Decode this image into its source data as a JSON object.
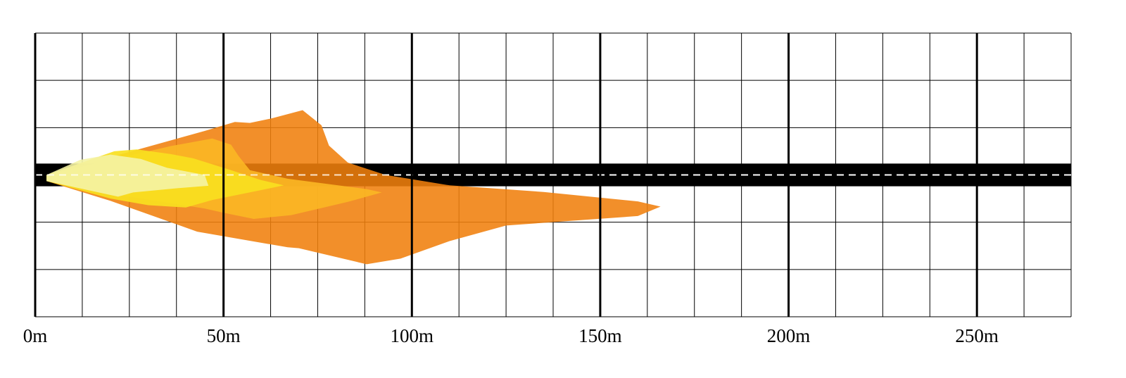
{
  "chart_data": {
    "type": "area",
    "title": "",
    "xlabel": "",
    "ylabel": "",
    "xlim": [
      0,
      275
    ],
    "ylim": [
      -30,
      30
    ],
    "x_tick_labels": [
      "0m",
      "50m",
      "100m",
      "150m",
      "200m",
      "250m"
    ],
    "x_tick_values": [
      0,
      50,
      100,
      150,
      200,
      250
    ],
    "major_gridline_step": 50,
    "minor_gridline_step": 12.5,
    "horizontal_gridline_step": 10,
    "grid": true,
    "legend": "none",
    "road": {
      "center_y": 0,
      "half_width": 2.4,
      "color": "#000000",
      "centerline_color": "#ffffff",
      "centerline_style": "dashed"
    },
    "series": [
      {
        "color": "#f07f0c",
        "opacity": 0.88,
        "outline": [
          [
            3,
            0
          ],
          [
            45,
            9.3
          ],
          [
            53,
            11.2
          ],
          [
            57,
            11.0
          ],
          [
            63,
            12.0
          ],
          [
            71,
            13.7
          ],
          [
            76,
            10.5
          ],
          [
            78,
            6.2
          ],
          [
            83,
            2.6
          ],
          [
            93,
            0
          ],
          [
            110,
            -2.2
          ],
          [
            135,
            -3.6
          ],
          [
            160,
            -5.6
          ],
          [
            166,
            -6.7
          ],
          [
            160,
            -8.7
          ],
          [
            125,
            -10.7
          ],
          [
            110,
            -14
          ],
          [
            97,
            -17.7
          ],
          [
            88,
            -18.9
          ],
          [
            70,
            -15.5
          ],
          [
            67,
            -15.3
          ],
          [
            43,
            -12.0
          ],
          [
            20,
            -5.5
          ],
          [
            3,
            -1.3
          ]
        ]
      },
      {
        "color": "#fbb724",
        "opacity": 0.9,
        "outline": [
          [
            3,
            0
          ],
          [
            36,
            6.1
          ],
          [
            47,
            7.7
          ],
          [
            52,
            6.4
          ],
          [
            54,
            4.0
          ],
          [
            57,
            1.0
          ],
          [
            67,
            -0.8
          ],
          [
            88,
            -3.0
          ],
          [
            92,
            -3.7
          ],
          [
            83,
            -5.7
          ],
          [
            68,
            -8.5
          ],
          [
            58,
            -9.3
          ],
          [
            50,
            -8.0
          ],
          [
            45,
            -7.1
          ],
          [
            22,
            -4.2
          ],
          [
            3,
            -1.3
          ]
        ]
      },
      {
        "color": "#f9e020",
        "opacity": 0.92,
        "outline": [
          [
            3,
            0
          ],
          [
            21,
            5.0
          ],
          [
            27,
            5.4
          ],
          [
            36,
            4.4
          ],
          [
            42,
            3.5
          ],
          [
            52,
            1.0
          ],
          [
            60,
            -1.1
          ],
          [
            66,
            -2.2
          ],
          [
            60,
            -3.2
          ],
          [
            47,
            -5.3
          ],
          [
            40,
            -6.9
          ],
          [
            30,
            -6.4
          ],
          [
            20,
            -5.0
          ],
          [
            3,
            -1.3
          ]
        ]
      },
      {
        "color": "#f4f3a5",
        "opacity": 0.9,
        "outline": [
          [
            3,
            0
          ],
          [
            12,
            3.2
          ],
          [
            20,
            4.3
          ],
          [
            28,
            3.4
          ],
          [
            35,
            1.5
          ],
          [
            45,
            0
          ],
          [
            46,
            -2.3
          ],
          [
            38,
            -2.8
          ],
          [
            26,
            -3.7
          ],
          [
            22,
            -4.6
          ],
          [
            3,
            -1.3
          ]
        ]
      }
    ]
  }
}
